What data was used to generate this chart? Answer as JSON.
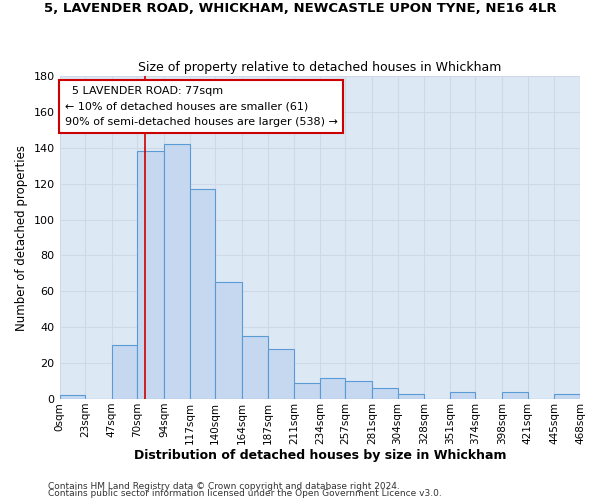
{
  "title": "5, LAVENDER ROAD, WHICKHAM, NEWCASTLE UPON TYNE, NE16 4LR",
  "subtitle": "Size of property relative to detached houses in Whickham",
  "xlabel": "Distribution of detached houses by size in Whickham",
  "ylabel": "Number of detached properties",
  "bin_edges": [
    0,
    23,
    47,
    70,
    94,
    117,
    140,
    164,
    187,
    211,
    234,
    257,
    281,
    304,
    328,
    351,
    374,
    398,
    421,
    445,
    468
  ],
  "bin_labels": [
    "0sqm",
    "23sqm",
    "47sqm",
    "70sqm",
    "94sqm",
    "117sqm",
    "140sqm",
    "164sqm",
    "187sqm",
    "211sqm",
    "234sqm",
    "257sqm",
    "281sqm",
    "304sqm",
    "328sqm",
    "351sqm",
    "374sqm",
    "398sqm",
    "421sqm",
    "445sqm",
    "468sqm"
  ],
  "counts": [
    2,
    0,
    30,
    138,
    142,
    117,
    65,
    35,
    28,
    9,
    12,
    10,
    6,
    3,
    0,
    4,
    0,
    4,
    0,
    3
  ],
  "bar_facecolor": "#c5d8f0",
  "bar_edgecolor": "#5b9bd5",
  "grid_color": "#d0d8e8",
  "background_color": "#dde8f5",
  "vline_x": 77,
  "vline_color": "#cc0000",
  "annotation_title": "5 LAVENDER ROAD: 77sqm",
  "annotation_line1": "← 10% of detached houses are smaller (61)",
  "annotation_line2": "90% of semi-detached houses are larger (538) →",
  "annotation_box_edgecolor": "#cc0000",
  "ylim": [
    0,
    180
  ],
  "yticks": [
    0,
    20,
    40,
    60,
    80,
    100,
    120,
    140,
    160,
    180
  ],
  "footer1": "Contains HM Land Registry data © Crown copyright and database right 2024.",
  "footer2": "Contains public sector information licensed under the Open Government Licence v3.0."
}
